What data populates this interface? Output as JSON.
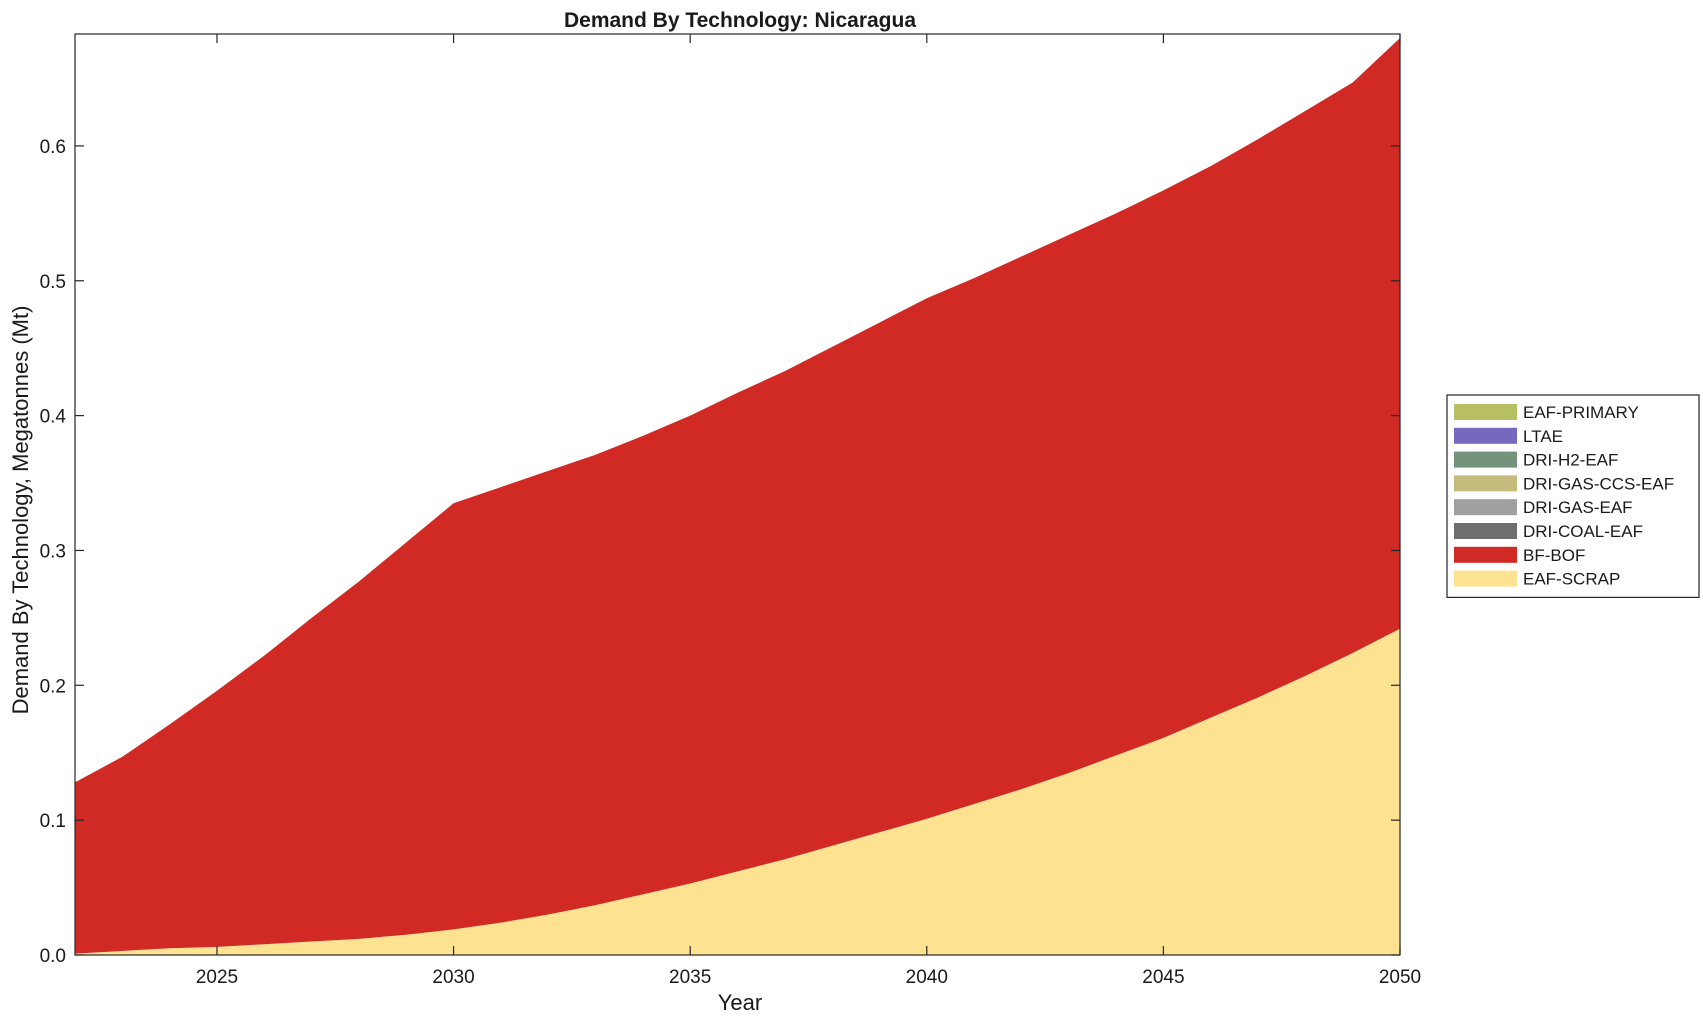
{
  "chart_data": {
    "type": "area",
    "title": "Demand By Technology: Nicaragua",
    "xlabel": "Year",
    "ylabel": "Demand By Technology, Megatonnes (Mt)",
    "xlim": [
      2022,
      2050
    ],
    "ylim": [
      0,
      0.683
    ],
    "x_ticks": [
      2025,
      2030,
      2035,
      2040,
      2045,
      2050
    ],
    "x_tick_labels": [
      "2025",
      "2030",
      "2035",
      "2040",
      "2045",
      "2050"
    ],
    "y_ticks": [
      0,
      0.1,
      0.2,
      0.3,
      0.4,
      0.5,
      0.6
    ],
    "y_tick_labels": [
      "0.0",
      "0.1",
      "0.2",
      "0.3",
      "0.4",
      "0.5",
      "0.6"
    ],
    "grid": false,
    "stacked": true,
    "legend_position": "right",
    "x": [
      2022,
      2023,
      2024,
      2025,
      2026,
      2027,
      2028,
      2029,
      2030,
      2031,
      2032,
      2033,
      2034,
      2035,
      2036,
      2037,
      2038,
      2039,
      2040,
      2041,
      2042,
      2043,
      2044,
      2045,
      2046,
      2047,
      2048,
      2049,
      2050
    ],
    "series": [
      {
        "name": "EAF-SCRAP",
        "color": "#fde391",
        "values": [
          0.001,
          0.003,
          0.005,
          0.006,
          0.008,
          0.01,
          0.012,
          0.015,
          0.019,
          0.024,
          0.03,
          0.037,
          0.045,
          0.053,
          0.062,
          0.071,
          0.081,
          0.091,
          0.101,
          0.112,
          0.123,
          0.135,
          0.148,
          0.161,
          0.176,
          0.191,
          0.207,
          0.224,
          0.242
        ]
      },
      {
        "name": "BF-BOF",
        "color": "#d12a24",
        "values": [
          0.127,
          0.144,
          0.166,
          0.19,
          0.214,
          0.24,
          0.265,
          0.291,
          0.316,
          0.323,
          0.329,
          0.334,
          0.34,
          0.347,
          0.355,
          0.362,
          0.37,
          0.378,
          0.386,
          0.39,
          0.395,
          0.399,
          0.402,
          0.406,
          0.409,
          0.414,
          0.419,
          0.423,
          0.438
        ]
      },
      {
        "name": "DRI-COAL-EAF",
        "color": "#6e6e6e",
        "values": [
          0,
          0,
          0,
          0,
          0,
          0,
          0,
          0,
          0,
          0,
          0,
          0,
          0,
          0,
          0,
          0,
          0,
          0,
          0,
          0,
          0,
          0,
          0,
          0,
          0,
          0,
          0,
          0,
          0
        ]
      },
      {
        "name": "DRI-GAS-EAF",
        "color": "#a0a0a0",
        "values": [
          0,
          0,
          0,
          0,
          0,
          0,
          0,
          0,
          0,
          0,
          0,
          0,
          0,
          0,
          0,
          0,
          0,
          0,
          0,
          0,
          0,
          0,
          0,
          0,
          0,
          0,
          0,
          0,
          0
        ]
      },
      {
        "name": "DRI-GAS-CCS-EAF",
        "color": "#c4bb7c",
        "values": [
          0,
          0,
          0,
          0,
          0,
          0,
          0,
          0,
          0,
          0,
          0,
          0,
          0,
          0,
          0,
          0,
          0,
          0,
          0,
          0,
          0,
          0,
          0,
          0,
          0,
          0,
          0,
          0,
          0
        ]
      },
      {
        "name": "DRI-H2-EAF",
        "color": "#73947b",
        "values": [
          0,
          0,
          0,
          0,
          0,
          0,
          0,
          0,
          0,
          0,
          0,
          0,
          0,
          0,
          0,
          0,
          0,
          0,
          0,
          0,
          0,
          0,
          0,
          0,
          0,
          0,
          0,
          0,
          0
        ]
      },
      {
        "name": "LTAE",
        "color": "#7569be",
        "values": [
          0,
          0,
          0,
          0,
          0,
          0,
          0,
          0,
          0,
          0,
          0,
          0,
          0,
          0,
          0,
          0,
          0,
          0,
          0,
          0,
          0,
          0,
          0,
          0,
          0,
          0,
          0,
          0,
          0
        ]
      },
      {
        "name": "EAF-PRIMARY",
        "color": "#b8c064",
        "values": [
          0,
          0,
          0,
          0,
          0,
          0,
          0,
          0,
          0,
          0,
          0,
          0,
          0,
          0,
          0,
          0,
          0,
          0,
          0,
          0,
          0,
          0,
          0,
          0,
          0,
          0,
          0,
          0,
          0
        ]
      }
    ],
    "legend_order": [
      "EAF-PRIMARY",
      "LTAE",
      "DRI-H2-EAF",
      "DRI-GAS-CCS-EAF",
      "DRI-GAS-EAF",
      "DRI-COAL-EAF",
      "BF-BOF",
      "EAF-SCRAP"
    ]
  }
}
